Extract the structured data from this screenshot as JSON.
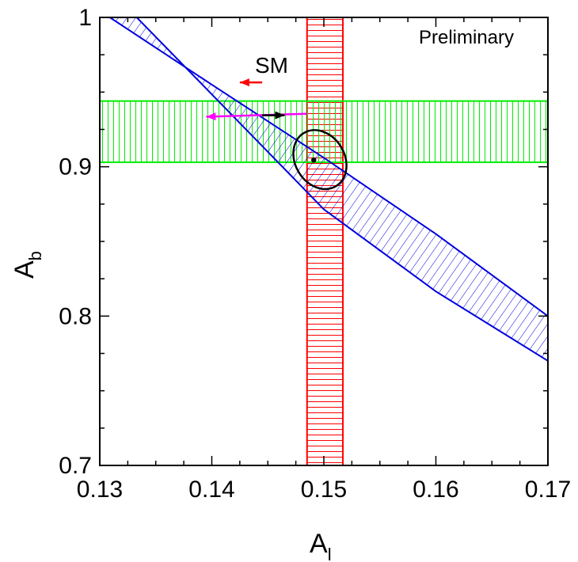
{
  "chart_data": {
    "type": "scatter",
    "title": "",
    "xlabel": "A",
    "xlabel_sub": "l",
    "ylabel": "A",
    "ylabel_sub": "b",
    "xlim": [
      0.13,
      0.17
    ],
    "ylim": [
      0.7,
      1.0
    ],
    "xticks": [
      0.13,
      0.14,
      0.15,
      0.16,
      0.17
    ],
    "yticks": [
      0.7,
      0.8,
      0.9,
      1.0
    ],
    "xtick_labels": [
      "0.13",
      "0.14",
      "0.15",
      "0.16",
      "0.17"
    ],
    "ytick_labels": [
      "0.7",
      "0.8",
      "0.9",
      "1"
    ],
    "x_minor_step": 0.0025,
    "y_minor_step": 0.025,
    "grid": false,
    "annotations": {
      "preliminary": "Preliminary",
      "sm": "SM"
    },
    "bands": {
      "vertical": {
        "x_min": 0.1485,
        "x_max": 0.1517,
        "color": "#ff0000",
        "hatch": "horizontal"
      },
      "horizontal": {
        "y_min": 0.903,
        "y_max": 0.944,
        "color": "#00ee00",
        "hatch": "vertical"
      },
      "diagonal": {
        "color": "#0000dd",
        "hatch": "diagonal",
        "upper": [
          [
            0.1309,
            1.0
          ],
          [
            0.14,
            0.955
          ],
          [
            0.15,
            0.906
          ],
          [
            0.16,
            0.855
          ],
          [
            0.17,
            0.8
          ]
        ],
        "lower": [
          [
            0.1333,
            1.0
          ],
          [
            0.14,
            0.9485
          ],
          [
            0.15,
            0.8715
          ],
          [
            0.16,
            0.8165
          ],
          [
            0.17,
            0.77
          ]
        ]
      }
    },
    "ellipse": {
      "center": [
        0.14965,
        0.9048
      ],
      "rx_data": 0.0022,
      "ry_data": 0.0208,
      "tilt": -0.55,
      "color": "#000000"
    },
    "point": {
      "x": 0.1491,
      "y": 0.9045,
      "color": "#000000"
    },
    "arrows": [
      {
        "from": [
          0.1445,
          0.9565
        ],
        "to": [
          0.1425,
          0.9565
        ],
        "color": "#ff0000"
      },
      {
        "from": [
          0.1485,
          0.9355
        ],
        "to": [
          0.1395,
          0.9335
        ],
        "color": "#ff00ff"
      },
      {
        "from": [
          0.1445,
          0.9345
        ],
        "to": [
          0.1465,
          0.9345
        ],
        "color": "#000000"
      }
    ]
  }
}
